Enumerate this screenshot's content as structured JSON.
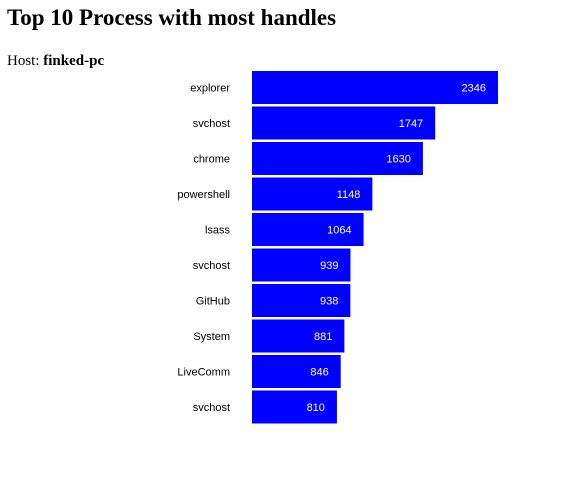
{
  "page": {
    "title": "Top 10 Process with most handles",
    "host_label": "Host:",
    "host_name": "finked-pc"
  },
  "colors": {
    "bar": "#0000ff",
    "value_label": "#ffffff",
    "category_label": "#000000"
  },
  "chart_data": {
    "type": "bar",
    "orientation": "horizontal",
    "title": "",
    "xlabel": "",
    "ylabel": "",
    "xlim": [
      0,
      2346
    ],
    "grid": false,
    "categories": [
      "explorer",
      "svchost",
      "chrome",
      "powershell",
      "lsass",
      "svchost",
      "GitHub",
      "System",
      "LiveComm",
      "svchost"
    ],
    "values": [
      2346,
      1747,
      1630,
      1148,
      1064,
      939,
      938,
      881,
      846,
      810
    ]
  }
}
